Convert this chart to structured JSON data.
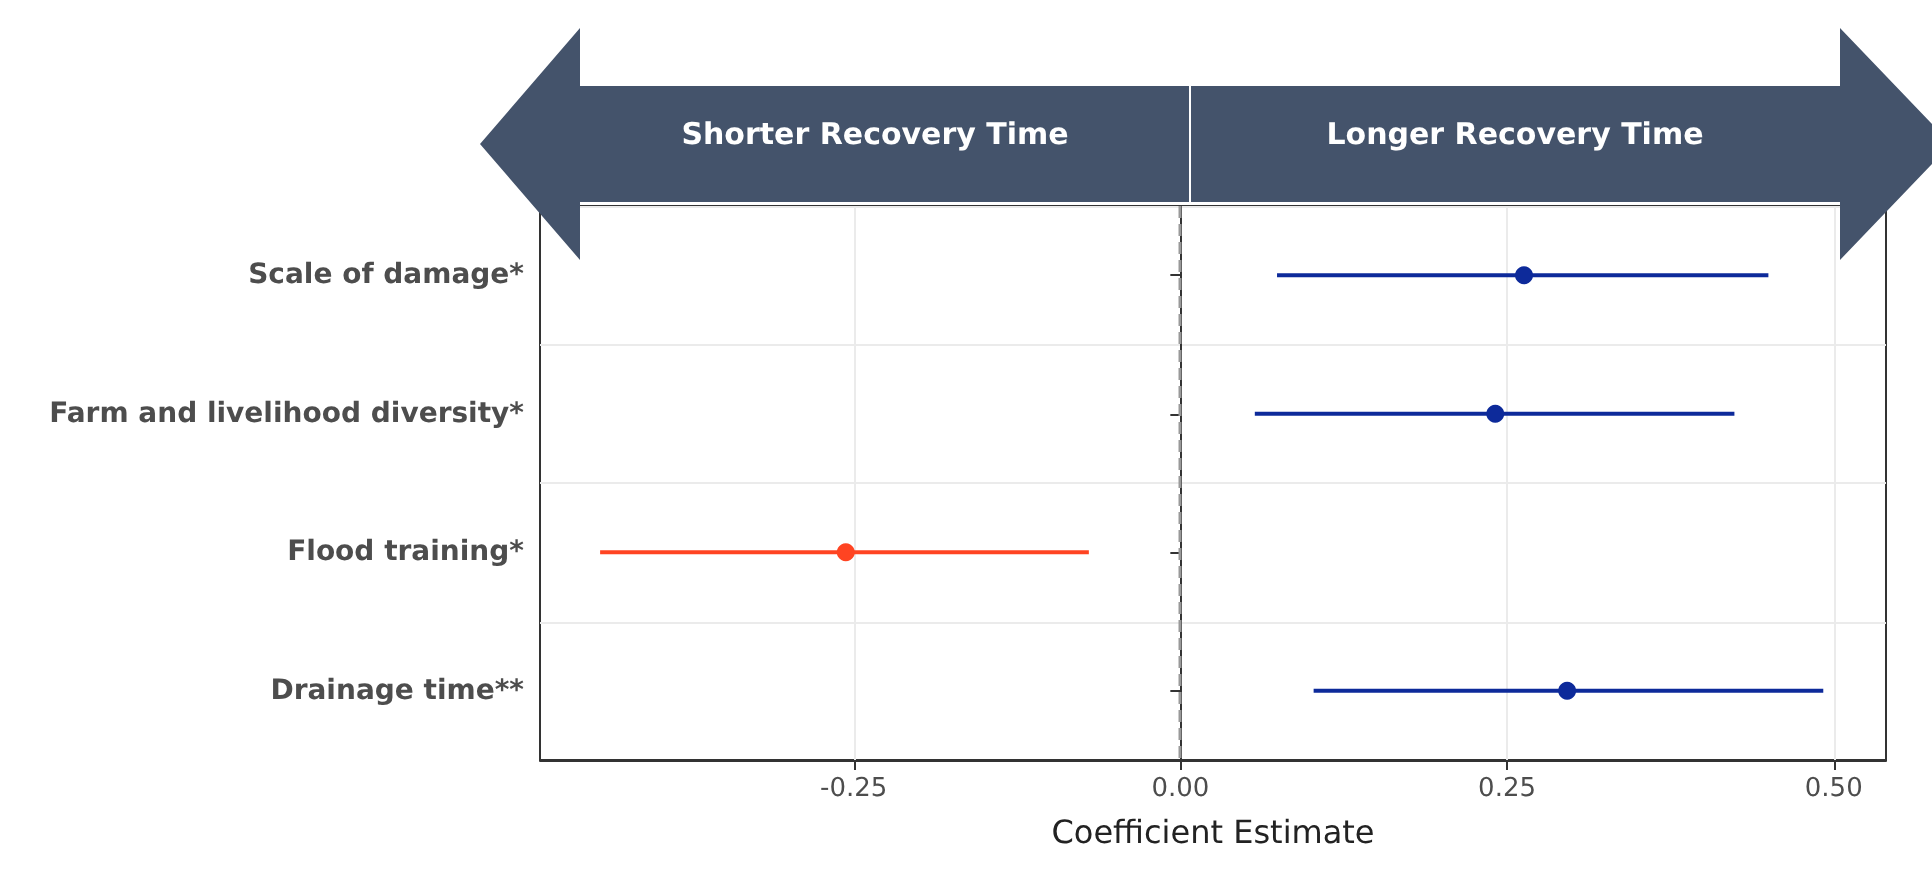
{
  "chart_data": {
    "type": "scatter",
    "orientation": "horizontal",
    "xlabel": "Coefficient Estimate",
    "categories": [
      "Scale of damage*",
      "Farm and livelihood diversity*",
      "Flood training*",
      "Drainage time**"
    ],
    "values": [
      0.263,
      0.241,
      -0.256,
      0.296
    ],
    "errors": [
      [
        0.074,
        0.45
      ],
      [
        0.057,
        0.424
      ],
      [
        -0.444,
        -0.07
      ],
      [
        0.102,
        0.492
      ]
    ],
    "colors": [
      "#0d2a9a",
      "#0d2a9a",
      "#ff4422",
      "#0d2a9a"
    ],
    "xlim": [
      -0.49,
      0.54
    ],
    "xticks": [
      -0.25,
      {
        "value": 0,
        "label": "0.00"
      },
      0.25,
      {
        "value": 0.5,
        "label": "0.50"
      }
    ],
    "grid": true,
    "marker": "circle",
    "ref_lines": [
      {
        "axis": "x",
        "value": 0,
        "color": "#999999",
        "line_style": "dashed"
      }
    ],
    "annotations": [
      "Shorter Recovery Time",
      "Longer Recovery Time"
    ]
  }
}
